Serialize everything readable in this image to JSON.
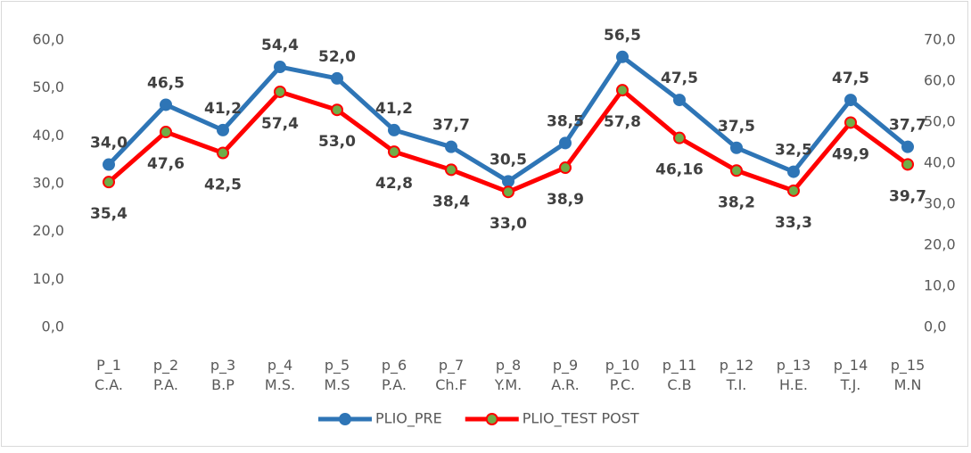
{
  "chart_data": {
    "type": "line",
    "categories": [
      [
        "P_1",
        "C.A."
      ],
      [
        "p_2",
        "P.A."
      ],
      [
        "p_3",
        "B.P"
      ],
      [
        "p_4",
        "M.S."
      ],
      [
        "p_5",
        "M.S"
      ],
      [
        "p_6",
        "P.A."
      ],
      [
        "p_7",
        "Ch.F"
      ],
      [
        "p_8",
        "Y.M."
      ],
      [
        "p_9",
        "A.R."
      ],
      [
        "p_10",
        "P.C."
      ],
      [
        "p_11",
        "C.B"
      ],
      [
        "p_12",
        "T.I."
      ],
      [
        "p_13",
        "H.E."
      ],
      [
        "p_14",
        "T.J."
      ],
      [
        "p_15",
        "M.N"
      ]
    ],
    "series": [
      {
        "name": "PLIO_PRE",
        "color": "#2E75B6",
        "marker_fill": "#2E75B6",
        "axis": "y",
        "values": [
          34.0,
          46.5,
          41.2,
          54.4,
          52.0,
          41.2,
          37.7,
          30.5,
          38.5,
          56.5,
          47.5,
          37.5,
          32.5,
          47.5,
          37.7
        ],
        "value_labels": [
          "34,0",
          "46,5",
          "41,2",
          "54,4",
          "52,0",
          "41,2",
          "37,7",
          "30,5",
          "38,5",
          "56,5",
          "47,5",
          "37,5",
          "32,5",
          "47,5",
          "37,7"
        ]
      },
      {
        "name": "PLIO_TEST POST",
        "color": "#FF0000",
        "marker_fill": "#70AD47",
        "axis": "y2",
        "values": [
          35.4,
          47.6,
          42.5,
          57.4,
          53.0,
          42.8,
          38.4,
          33.0,
          38.9,
          57.8,
          46.16,
          38.2,
          33.3,
          49.9,
          39.7
        ],
        "value_labels": [
          "35,4",
          "47,6",
          "42,5",
          "57,4",
          "53,0",
          "42,8",
          "38,4",
          "33,0",
          "38,9",
          "57,8",
          "46,16",
          "38,2",
          "33,3",
          "49,9",
          "39,7"
        ]
      }
    ],
    "ylim": [
      0,
      60
    ],
    "yticks": [
      {
        "value": 0,
        "label": "0,0"
      },
      {
        "value": 10,
        "label": "10,0"
      },
      {
        "value": 20,
        "label": "20,0"
      },
      {
        "value": 30,
        "label": "30,0"
      },
      {
        "value": 40,
        "label": "40,0"
      },
      {
        "value": 50,
        "label": "50,0"
      },
      {
        "value": 60,
        "label": "60,0"
      }
    ],
    "y2lim": [
      0,
      70
    ],
    "y2ticks": [
      {
        "value": 0,
        "label": "0,0"
      },
      {
        "value": 10,
        "label": "10,0"
      },
      {
        "value": 20,
        "label": "20,0"
      },
      {
        "value": 30,
        "label": "30,0"
      },
      {
        "value": 40,
        "label": "40,0"
      },
      {
        "value": 50,
        "label": "50,0"
      },
      {
        "value": 60,
        "label": "60,0"
      },
      {
        "value": 70,
        "label": "70,0"
      }
    ],
    "grid": false,
    "legend": "bottom"
  }
}
